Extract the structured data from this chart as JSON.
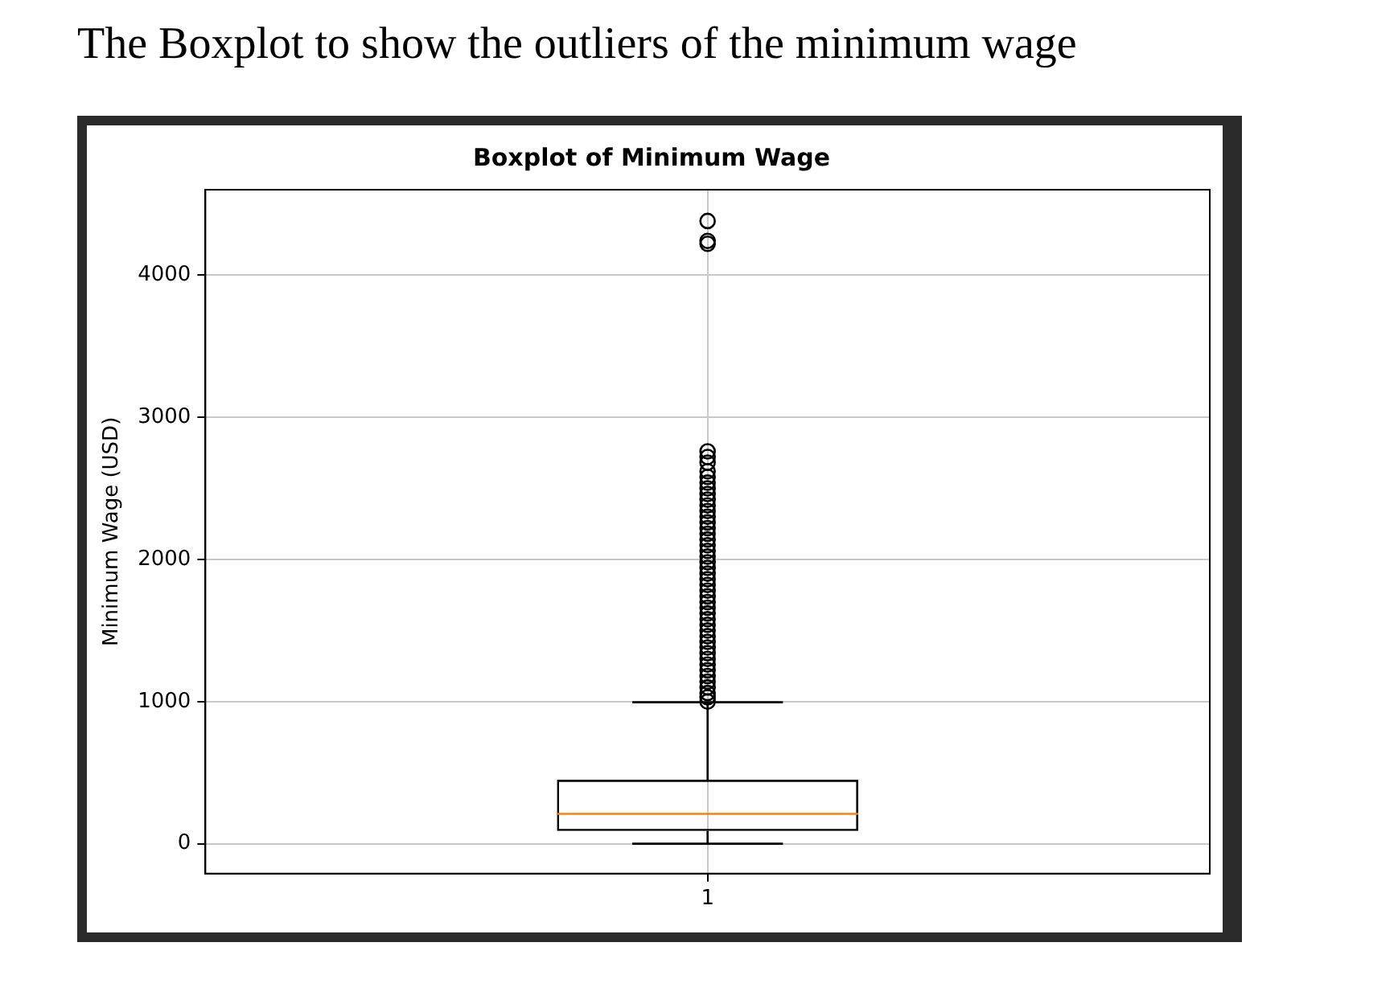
{
  "chart_data": {
    "type": "box",
    "title": "Boxplot of Minimum Wage",
    "ylabel": "Minimum Wage (USD)",
    "annotations": [
      "The Boxplot to show the outliers of the minimum wage"
    ],
    "categories": [
      "1"
    ],
    "series": [
      {
        "color": "#000000",
        "boxes": [
          {
            "low": 0,
            "q1": 90,
            "median": 210,
            "q3": 450,
            "high": 995,
            "outliers": [
              4380,
              4240,
              4220,
              2760,
              2720,
              2680,
              2620,
              2580,
              2540,
              2500,
              2460,
              2420,
              2380,
              2340,
              2300,
              2260,
              2220,
              2180,
              2140,
              2100,
              2060,
              2020,
              1980,
              1940,
              1900,
              1860,
              1820,
              1780,
              1740,
              1700,
              1660,
              1620,
              1580,
              1540,
              1500,
              1460,
              1420,
              1380,
              1340,
              1300,
              1260,
              1220,
              1180,
              1140,
              1100,
              1060,
              1030,
              1000
            ]
          }
        ]
      }
    ],
    "ylim": [
      -210,
      4600
    ],
    "yticks": [
      0,
      1000,
      2000,
      3000,
      4000
    ],
    "grid": true,
    "legend": false
  }
}
